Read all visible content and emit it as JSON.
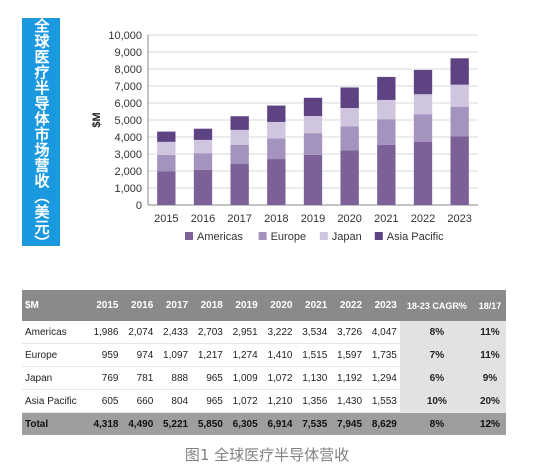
{
  "side_title": "全球医疗半导体市场营收（美元）",
  "caption": "图1 全球医疗半导体营收",
  "colors": {
    "side_title_bg": "#1a98e0"
  },
  "chart_data": {
    "type": "bar",
    "stacked": true,
    "ylabel": "$M",
    "ylim": [
      0,
      10000
    ],
    "yticks": [
      "0",
      "1,000",
      "2,000",
      "3,000",
      "4,000",
      "5,000",
      "6,000",
      "7,000",
      "8,000",
      "9,000",
      "10,000"
    ],
    "categories": [
      "2015",
      "2016",
      "2017",
      "2018",
      "2019",
      "2020",
      "2021",
      "2022",
      "2023"
    ],
    "grid": true,
    "legend_position": "bottom",
    "series": [
      {
        "name": "Americas",
        "color": "#7b6198",
        "values": [
          1986,
          2074,
          2433,
          2703,
          2951,
          3222,
          3534,
          3726,
          4047
        ]
      },
      {
        "name": "Europe",
        "color": "#a493bf",
        "values": [
          959,
          974,
          1097,
          1217,
          1274,
          1410,
          1515,
          1597,
          1735
        ]
      },
      {
        "name": "Japan",
        "color": "#cfc5de",
        "values": [
          769,
          781,
          888,
          965,
          1009,
          1072,
          1130,
          1192,
          1294
        ]
      },
      {
        "name": "Asia Pacific",
        "color": "#5d4382",
        "values": [
          605,
          660,
          804,
          965,
          1072,
          1210,
          1356,
          1430,
          1553
        ]
      }
    ]
  },
  "table": {
    "headers": [
      "$M",
      "2015",
      "2016",
      "2017",
      "2018",
      "2019",
      "2020",
      "2021",
      "2022",
      "2023",
      "18-23 CAGR%",
      "18/17"
    ],
    "rows": [
      [
        "Americas",
        "1,986",
        "2,074",
        "2,433",
        "2,703",
        "2,951",
        "3,222",
        "3,534",
        "3,726",
        "4,047",
        "8%",
        "11%"
      ],
      [
        "Europe",
        "959",
        "974",
        "1,097",
        "1,217",
        "1,274",
        "1,410",
        "1,515",
        "1,597",
        "1,735",
        "7%",
        "11%"
      ],
      [
        "Japan",
        "769",
        "781",
        "888",
        "965",
        "1,009",
        "1,072",
        "1,130",
        "1,192",
        "1,294",
        "6%",
        "9%"
      ],
      [
        "Asia Pacific",
        "605",
        "660",
        "804",
        "965",
        "1,072",
        "1,210",
        "1,356",
        "1,430",
        "1,553",
        "10%",
        "20%"
      ],
      [
        "Total",
        "4,318",
        "4,490",
        "5,221",
        "5,850",
        "6,305",
        "6,914",
        "7,535",
        "7,945",
        "8,629",
        "8%",
        "12%"
      ]
    ]
  }
}
